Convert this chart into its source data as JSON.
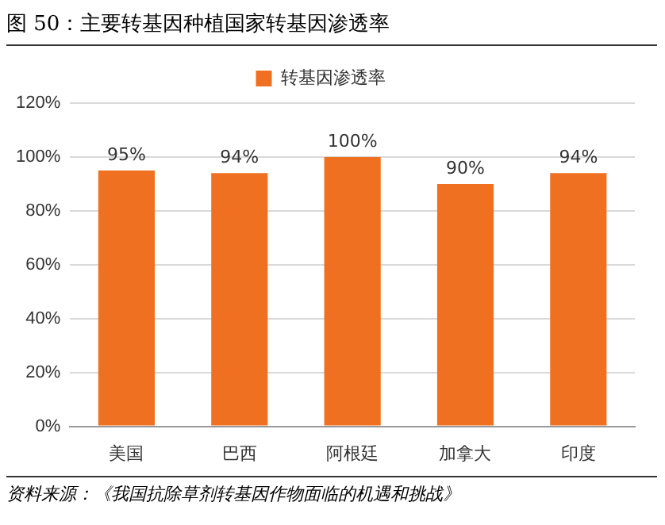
{
  "chart_data": {
    "type": "bar",
    "title": "图 50：主要转基因种植国家转基因渗透率",
    "categories": [
      "美国",
      "巴西",
      "阿根廷",
      "加拿大",
      "印度"
    ],
    "series": [
      {
        "name": "转基因渗透率",
        "color": "#f07021",
        "values": [
          95,
          94,
          100,
          90,
          94
        ],
        "value_labels": [
          "95%",
          "94%",
          "100%",
          "90%",
          "94%"
        ]
      }
    ],
    "ylim": [
      0,
      120
    ],
    "yticks": [
      {
        "value": 0,
        "label": "0%"
      },
      {
        "value": 20,
        "label": "20%"
      },
      {
        "value": 40,
        "label": "40%"
      },
      {
        "value": 60,
        "label": "60%"
      },
      {
        "value": 80,
        "label": "80%"
      },
      {
        "value": 100,
        "label": "100%"
      },
      {
        "value": 120,
        "label": "120%"
      }
    ],
    "grid": "y",
    "legend": "top",
    "annotations": [
      "资料来源：《我国抗除草剂转基因作物面临的机遇和挑战》"
    ]
  }
}
